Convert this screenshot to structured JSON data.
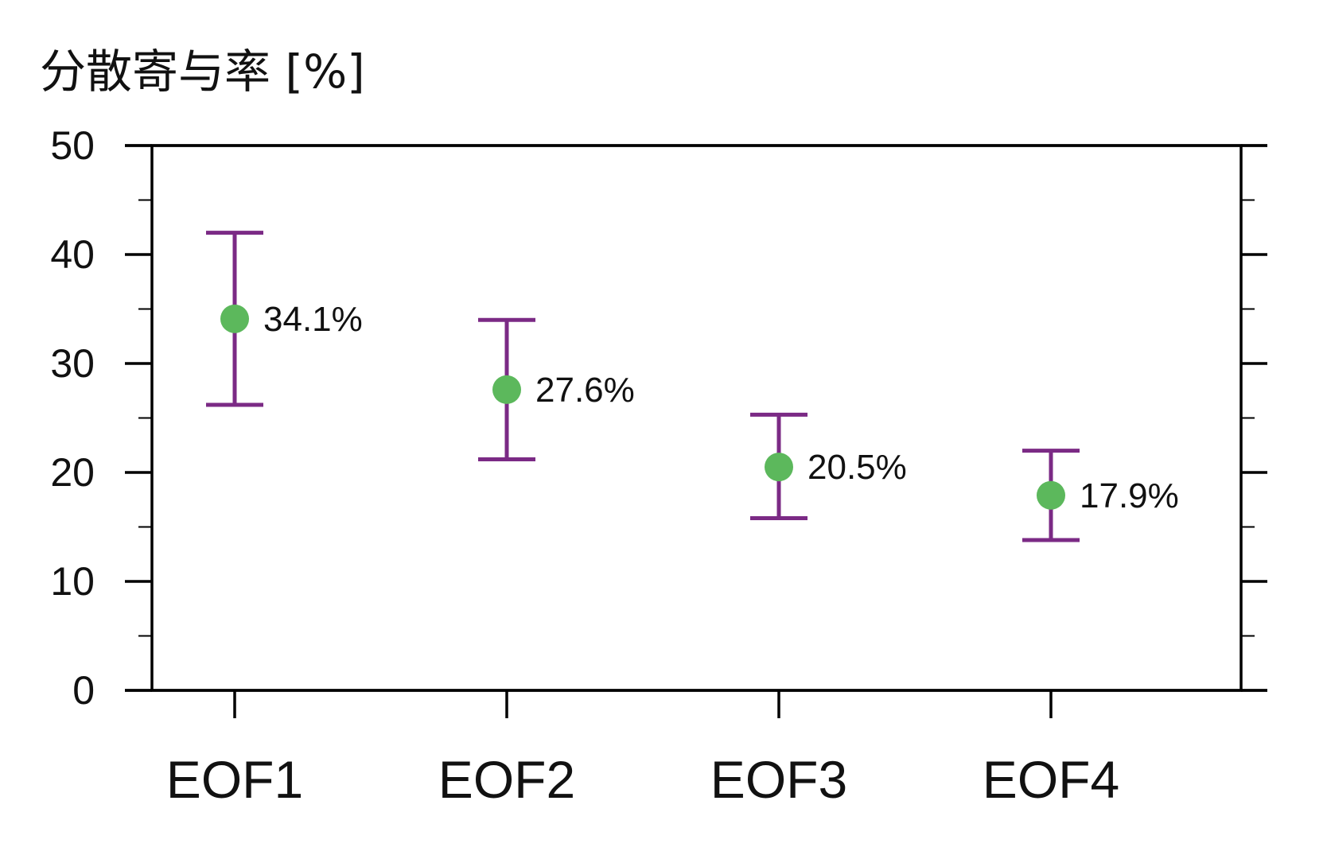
{
  "chart_data": {
    "type": "scatter",
    "title": "",
    "xlabel": "",
    "ylabel": "分散寄与率 [%]",
    "categories": [
      "EOF1",
      "EOF2",
      "EOF3",
      "EOF4"
    ],
    "values": [
      34.1,
      27.6,
      20.5,
      17.9
    ],
    "error_lower": [
      26.2,
      21.2,
      15.8,
      13.8
    ],
    "error_upper": [
      42.0,
      34.0,
      25.3,
      22.0
    ],
    "value_labels": [
      "34.1%",
      "27.6%",
      "20.5%",
      "17.9%"
    ],
    "ylim": [
      0,
      50
    ],
    "yticks": [
      0,
      10,
      20,
      30,
      40,
      50
    ],
    "ytick_labels": [
      "0",
      "10",
      "20",
      "30",
      "40",
      "50"
    ],
    "grid": false,
    "legend": "none",
    "colors": {
      "marker": "#5cb85c",
      "errorbar": "#7b2a85",
      "axis": "#000000"
    }
  }
}
